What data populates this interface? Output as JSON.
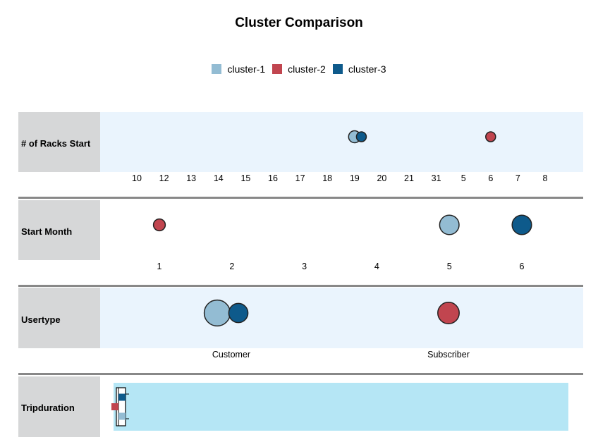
{
  "title": "Cluster Comparison",
  "legend": [
    {
      "name": "cluster-1",
      "color": "#93bcd3"
    },
    {
      "name": "cluster-2",
      "color": "#c1454f"
    },
    {
      "name": "cluster-3",
      "color": "#0e5a8b"
    }
  ],
  "chart_data": [
    {
      "type": "scatter",
      "panel": "# of Racks Start",
      "categories": [
        "10",
        "12",
        "13",
        "14",
        "15",
        "16",
        "17",
        "18",
        "19",
        "20",
        "21",
        "31",
        "5",
        "6",
        "7",
        "8"
      ],
      "points": [
        {
          "series": "cluster-1",
          "category_position": 8.0,
          "size": 0.45
        },
        {
          "series": "cluster-3",
          "category_position": 8.25,
          "size": 0.3
        },
        {
          "series": "cluster-2",
          "category_position": 13.0,
          "size": 0.3
        }
      ]
    },
    {
      "type": "scatter",
      "panel": "Start Month",
      "categories": [
        "1",
        "2",
        "3",
        "4",
        "5",
        "6"
      ],
      "points": [
        {
          "series": "cluster-2",
          "value": 1,
          "size": 0.3
        },
        {
          "series": "cluster-1",
          "value": 5,
          "size": 0.6
        },
        {
          "series": "cluster-3",
          "value": 6,
          "size": 0.6
        }
      ]
    },
    {
      "type": "scatter",
      "panel": "Usertype",
      "categories": [
        "Customer",
        "Subscriber"
      ],
      "points": [
        {
          "series": "cluster-1",
          "category": "Customer",
          "offset": -0.2,
          "size": 0.9
        },
        {
          "series": "cluster-3",
          "category": "Customer",
          "offset": 0.1,
          "size": 0.6
        },
        {
          "series": "cluster-2",
          "category": "Subscriber",
          "offset": 0.0,
          "size": 0.7
        }
      ]
    },
    {
      "type": "boxplot",
      "panel": "Tripduration",
      "markers": [
        {
          "series": "cluster-3",
          "level": 0.25
        },
        {
          "series": "cluster-2",
          "level": 0.5
        },
        {
          "series": "cluster-1",
          "level": 0.75
        }
      ]
    }
  ]
}
